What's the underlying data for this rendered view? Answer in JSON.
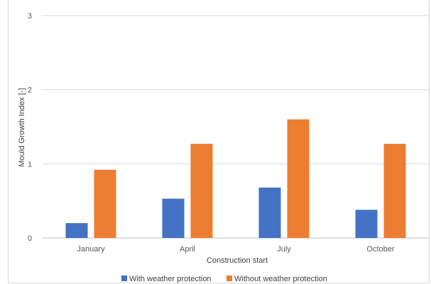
{
  "chart_data": {
    "type": "bar",
    "title": "",
    "xlabel": "Construction start",
    "ylabel": "Mould Growth Index [-]",
    "categories": [
      "January",
      "April",
      "July",
      "October"
    ],
    "series": [
      {
        "name": "With weather protection",
        "values": [
          0.2,
          0.53,
          0.68,
          0.38
        ],
        "color": "#4472c4"
      },
      {
        "name": "Without weather protection",
        "values": [
          0.92,
          1.27,
          1.6,
          1.27
        ],
        "color": "#ed7d31"
      }
    ],
    "ylim": [
      0,
      3
    ],
    "yticks": [
      "0",
      "1",
      "2",
      "3"
    ],
    "grid": true,
    "legend_position": "bottom"
  }
}
